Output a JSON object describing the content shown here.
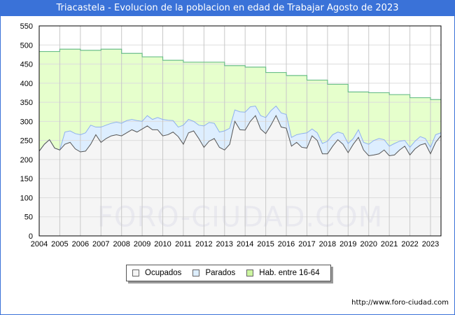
{
  "title": "Triacastela - Evolucion de la poblacion en edad de Trabajar Agosto de 2023",
  "watermark": "FORO-CIUDAD.COM",
  "url": "http://www.foro-ciudad.com",
  "colors": {
    "title_bg": "#3a72d8",
    "hab_fill": "#e6ffcc",
    "hab_line": "#6cbf8a",
    "parados_fill": "#ddeeff",
    "parados_line": "#8fb0ee",
    "ocupados_fill": "#f5f5f5",
    "ocupados_line": "#555555"
  },
  "chart_data": {
    "type": "area",
    "title": "Triacastela - Evolucion de la poblacion en edad de Trabajar Agosto de 2023",
    "xlabel": "",
    "ylabel": "",
    "xlim": [
      2004,
      2023.6
    ],
    "ylim": [
      0,
      550
    ],
    "yticks": [
      0,
      50,
      100,
      150,
      200,
      250,
      300,
      350,
      400,
      450,
      500,
      550
    ],
    "xticks": [
      2004,
      2005,
      2006,
      2007,
      2008,
      2009,
      2010,
      2011,
      2012,
      2013,
      2014,
      2015,
      2016,
      2017,
      2018,
      2019,
      2020,
      2021,
      2022,
      2023
    ],
    "grid": true,
    "legend_position": "bottom-center",
    "x_start": 2004,
    "x_step": 0.25,
    "series": [
      {
        "name": "Ocupados",
        "stacked": true,
        "values": [
          222,
          240,
          252,
          230,
          225,
          240,
          245,
          228,
          220,
          222,
          240,
          265,
          245,
          255,
          262,
          265,
          262,
          270,
          278,
          272,
          280,
          288,
          278,
          278,
          262,
          265,
          272,
          260,
          240,
          270,
          275,
          255,
          232,
          248,
          255,
          232,
          225,
          240,
          300,
          278,
          277,
          300,
          315,
          280,
          268,
          290,
          315,
          285,
          282,
          235,
          245,
          232,
          230,
          262,
          250,
          215,
          215,
          235,
          252,
          240,
          218,
          240,
          258,
          225,
          210,
          212,
          215,
          225,
          210,
          212,
          225,
          235,
          212,
          228,
          238,
          242,
          215,
          245,
          262
        ]
      },
      {
        "name": "Parados",
        "stacked": true,
        "values": [
          0,
          0,
          0,
          0,
          0,
          32,
          30,
          40,
          45,
          48,
          50,
          20,
          40,
          35,
          33,
          33,
          33,
          32,
          27,
          30,
          20,
          27,
          27,
          32,
          43,
          38,
          30,
          25,
          50,
          35,
          25,
          35,
          56,
          49,
          40,
          40,
          50,
          42,
          30,
          47,
          47,
          38,
          25,
          35,
          42,
          38,
          25,
          37,
          36,
          23,
          20,
          36,
          40,
          18,
          20,
          27,
          33,
          30,
          20,
          28,
          24,
          15,
          20,
          20,
          30,
          38,
          40,
          27,
          25,
          30,
          23,
          15,
          20,
          20,
          22,
          13,
          17,
          20,
          8
        ]
      },
      {
        "name": "Hab. entre 16-64",
        "stacked": false,
        "years": [
          2004,
          2005,
          2006,
          2007,
          2008,
          2009,
          2010,
          2011,
          2012,
          2013,
          2014,
          2015,
          2016,
          2017,
          2018,
          2019,
          2020,
          2021,
          2022,
          2023
        ],
        "values": [
          483,
          489,
          486,
          489,
          478,
          469,
          460,
          455,
          455,
          446,
          442,
          428,
          420,
          408,
          397,
          377,
          375,
          370,
          362,
          357
        ]
      }
    ]
  }
}
